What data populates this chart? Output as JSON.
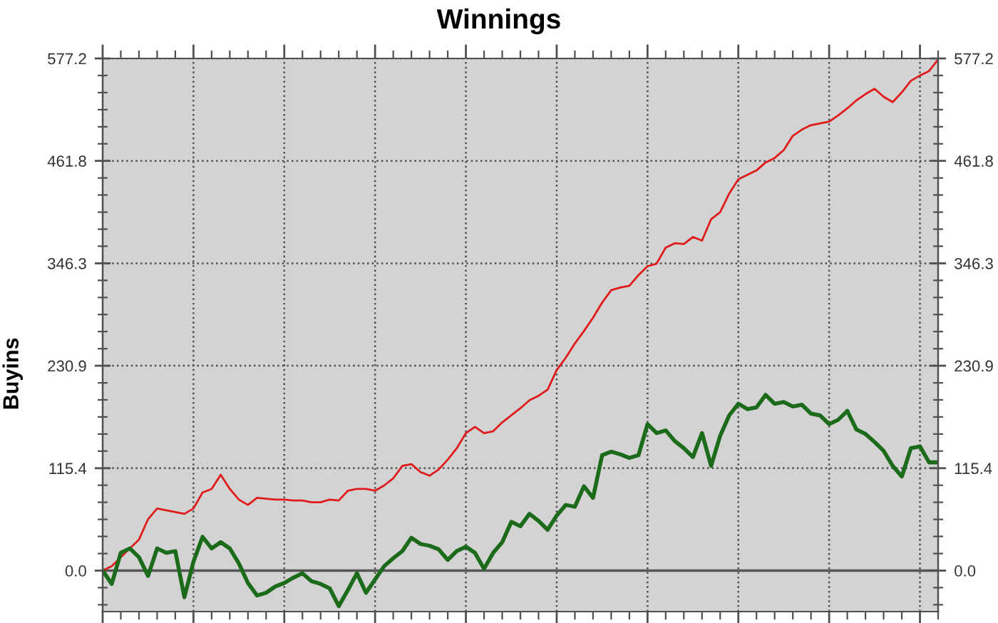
{
  "chart_data": {
    "type": "line",
    "title": "Winnings",
    "ylabel": "Buyins",
    "categories": [
      null,
      null,
      null,
      null,
      null,
      null,
      null,
      null,
      null,
      null,
      null,
      null,
      null,
      null,
      null,
      null,
      null,
      null,
      null,
      null,
      null,
      null,
      null,
      null,
      null,
      null,
      null,
      null,
      null,
      null,
      null,
      null,
      null,
      null,
      null,
      null,
      null,
      null,
      null,
      null,
      null,
      null,
      null,
      null,
      null,
      null,
      null,
      null,
      null,
      null,
      null,
      null,
      null,
      null,
      null,
      null,
      null,
      null,
      null,
      null,
      null,
      null,
      null,
      null,
      null,
      null,
      null,
      null,
      null,
      null,
      null,
      null,
      null,
      null,
      null,
      null,
      null,
      null,
      null,
      null,
      null,
      null,
      null,
      null,
      null,
      null,
      null,
      null,
      null,
      null,
      null,
      null,
      null
    ],
    "series": [
      {
        "color": "#e01b1b",
        "values": [
          0,
          5,
          15,
          25,
          35,
          58,
          70,
          68,
          66,
          64,
          70,
          88,
          92,
          108,
          92,
          80,
          74,
          82,
          81,
          80,
          80,
          79,
          79,
          77,
          77,
          80,
          79,
          90,
          92,
          92,
          90,
          96,
          104,
          118,
          120,
          111,
          107,
          114,
          125,
          138,
          155,
          162,
          155,
          157,
          167,
          175,
          183,
          192,
          197,
          204,
          226,
          240,
          256,
          270,
          285,
          302,
          316,
          319,
          321,
          333,
          343,
          346,
          364,
          369,
          368,
          376,
          372,
          396,
          404,
          425,
          441,
          446,
          451,
          460,
          465,
          474,
          490,
          497,
          502,
          504,
          506,
          513,
          521,
          530,
          537,
          543,
          534,
          528,
          539,
          552,
          558,
          563,
          576
        ]
      },
      {
        "color": "#1b6b1b",
        "values": [
          0,
          -15,
          20,
          25,
          15,
          -6,
          25,
          20,
          22,
          -30,
          10,
          38,
          25,
          32,
          25,
          8,
          -14,
          -28,
          -25,
          -18,
          -14,
          -8,
          -3,
          -12,
          -15,
          -20,
          -40,
          -22,
          -3,
          -25,
          -10,
          5,
          14,
          22,
          37,
          30,
          28,
          24,
          12,
          22,
          27,
          20,
          2,
          20,
          32,
          55,
          50,
          64,
          56,
          46,
          62,
          74,
          72,
          95,
          82,
          130,
          134,
          131,
          127,
          130,
          165,
          155,
          158,
          146,
          138,
          128,
          155,
          118,
          152,
          175,
          188,
          182,
          184,
          198,
          188,
          190,
          185,
          187,
          177,
          175,
          165,
          170,
          180,
          159,
          154,
          145,
          135,
          118,
          106,
          138,
          140,
          122,
          122
        ]
      }
    ],
    "ylim": [
      -46.2,
      577.2
    ],
    "yticks": [
      {
        "value": -38.5,
        "label": null
      },
      {
        "value": -19.2,
        "label": null
      },
      {
        "value": 0,
        "label": "0.0"
      },
      {
        "value": 19.2,
        "label": null
      },
      {
        "value": 38.5,
        "label": null
      },
      {
        "value": 57.7,
        "label": null
      },
      {
        "value": 77.0,
        "label": null
      },
      {
        "value": 96.2,
        "label": null
      },
      115.4,
      {
        "value": 134.7,
        "label": null
      },
      {
        "value": 153.9,
        "label": null
      },
      {
        "value": 173.2,
        "label": null
      },
      {
        "value": 192.4,
        "label": null
      },
      {
        "value": 211.6,
        "label": null
      },
      230.9,
      {
        "value": 250.1,
        "label": null
      },
      {
        "value": 269.4,
        "label": null
      },
      {
        "value": 288.6,
        "label": null
      },
      {
        "value": 307.8,
        "label": null
      },
      {
        "value": 327.1,
        "label": null
      },
      346.3,
      {
        "value": 365.6,
        "label": null
      },
      {
        "value": 384.8,
        "label": null
      },
      {
        "value": 404.0,
        "label": null
      },
      {
        "value": 423.3,
        "label": null
      },
      {
        "value": 442.5,
        "label": null
      },
      461.8,
      {
        "value": 481.0,
        "label": null
      },
      {
        "value": 500.2,
        "label": null
      },
      {
        "value": 519.5,
        "label": null
      },
      {
        "value": 538.7,
        "label": null
      },
      {
        "value": 558.0,
        "label": null
      },
      577.2
    ],
    "y2lim": [
      -46.2,
      577.2
    ],
    "y2ticks": [
      {
        "value": -38.5,
        "label": null
      },
      {
        "value": -19.2,
        "label": null
      },
      {
        "value": 0,
        "label": "0.0"
      },
      {
        "value": 19.2,
        "label": null
      },
      {
        "value": 38.5,
        "label": null
      },
      {
        "value": 57.7,
        "label": null
      },
      {
        "value": 77.0,
        "label": null
      },
      {
        "value": 96.2,
        "label": null
      },
      115.4,
      {
        "value": 134.7,
        "label": null
      },
      {
        "value": 153.9,
        "label": null
      },
      {
        "value": 173.2,
        "label": null
      },
      {
        "value": 192.4,
        "label": null
      },
      {
        "value": 211.6,
        "label": null
      },
      230.9,
      {
        "value": 250.1,
        "label": null
      },
      {
        "value": 269.4,
        "label": null
      },
      {
        "value": 288.6,
        "label": null
      },
      {
        "value": 307.8,
        "label": null
      },
      {
        "value": 327.1,
        "label": null
      },
      346.3,
      {
        "value": 365.6,
        "label": null
      },
      {
        "value": 384.8,
        "label": null
      },
      {
        "value": 404.0,
        "label": null
      },
      {
        "value": 423.3,
        "label": null
      },
      {
        "value": 442.5,
        "label": null
      },
      461.8,
      {
        "value": 481.0,
        "label": null
      },
      {
        "value": 500.2,
        "label": null
      },
      {
        "value": 519.5,
        "label": null
      },
      {
        "value": 538.7,
        "label": null
      },
      {
        "value": 558.0,
        "label": null
      },
      577.2
    ],
    "ref_lines": [
      {
        "axis": "y",
        "value": 0,
        "color": "#555555"
      }
    ],
    "grid": true,
    "tick_labels": "y"
  }
}
